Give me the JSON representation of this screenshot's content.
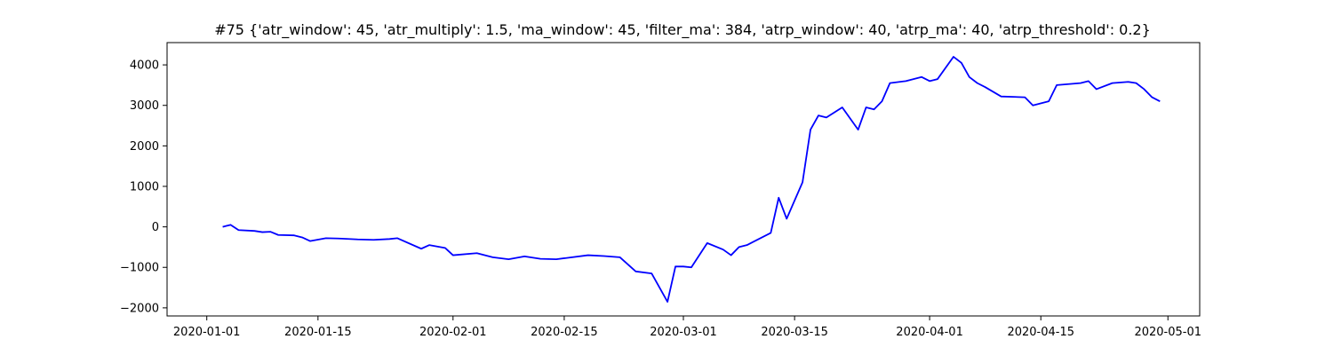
{
  "chart_data": {
    "type": "line",
    "title": "#75 {'atr_window': 45, 'atr_multiply': 1.5, 'ma_window': 45, 'filter_ma': 384, 'atrp_window': 40, 'atrp_ma': 40, 'atrp_threshold': 0.2}",
    "xlabel": "",
    "ylabel": "",
    "x_ticks": [
      "2020-01-01",
      "2020-01-15",
      "2020-02-01",
      "2020-02-15",
      "2020-03-01",
      "2020-03-15",
      "2020-04-01",
      "2020-04-15",
      "2020-05-01"
    ],
    "y_ticks": [
      -2000,
      -1000,
      0,
      1000,
      2000,
      3000,
      4000
    ],
    "xlim": [
      "2019-12-27",
      "2020-05-05"
    ],
    "ylim": [
      -2200,
      4550
    ],
    "grid": false,
    "legend": "none",
    "series": [
      {
        "color": "#0000ff",
        "x": [
          "2020-01-03",
          "2020-01-04",
          "2020-01-05",
          "2020-01-07",
          "2020-01-08",
          "2020-01-09",
          "2020-01-10",
          "2020-01-12",
          "2020-01-13",
          "2020-01-14",
          "2020-01-16",
          "2020-01-18",
          "2020-01-20",
          "2020-01-22",
          "2020-01-24",
          "2020-01-25",
          "2020-01-28",
          "2020-01-29",
          "2020-01-31",
          "2020-02-01",
          "2020-02-04",
          "2020-02-06",
          "2020-02-08",
          "2020-02-10",
          "2020-02-12",
          "2020-02-14",
          "2020-02-18",
          "2020-02-20",
          "2020-02-22",
          "2020-02-24",
          "2020-02-26",
          "2020-02-28",
          "2020-02-29",
          "2020-03-01",
          "2020-03-02",
          "2020-03-04",
          "2020-03-06",
          "2020-03-07",
          "2020-03-08",
          "2020-03-09",
          "2020-03-10",
          "2020-03-12",
          "2020-03-13",
          "2020-03-14",
          "2020-03-16",
          "2020-03-17",
          "2020-03-18",
          "2020-03-19",
          "2020-03-21",
          "2020-03-23",
          "2020-03-24",
          "2020-03-25",
          "2020-03-26",
          "2020-03-27",
          "2020-03-29",
          "2020-03-31",
          "2020-04-01",
          "2020-04-02",
          "2020-04-04",
          "2020-04-05",
          "2020-04-06",
          "2020-04-07",
          "2020-04-08",
          "2020-04-10",
          "2020-04-13",
          "2020-04-14",
          "2020-04-16",
          "2020-04-17",
          "2020-04-20",
          "2020-04-21",
          "2020-04-22",
          "2020-04-24",
          "2020-04-26",
          "2020-04-27",
          "2020-04-28",
          "2020-04-29",
          "2020-04-30"
        ],
        "y": [
          0,
          50,
          -80,
          -100,
          -130,
          -120,
          -200,
          -210,
          -260,
          -350,
          -280,
          -290,
          -310,
          -320,
          -300,
          -280,
          -540,
          -450,
          -520,
          -700,
          -650,
          -750,
          -800,
          -730,
          -790,
          -800,
          -700,
          -720,
          -750,
          -1100,
          -1150,
          -1850,
          -980,
          -980,
          -1000,
          -400,
          -560,
          -700,
          -500,
          -450,
          -350,
          -150,
          720,
          200,
          1100,
          2400,
          2750,
          2700,
          2950,
          2400,
          2950,
          2900,
          3100,
          3550,
          3600,
          3700,
          3600,
          3650,
          4200,
          4050,
          3700,
          3550,
          3450,
          3220,
          3200,
          3000,
          3100,
          3500,
          3550,
          3600,
          3400,
          3550,
          3580,
          3550,
          3400,
          3200,
          3100
        ]
      }
    ]
  }
}
